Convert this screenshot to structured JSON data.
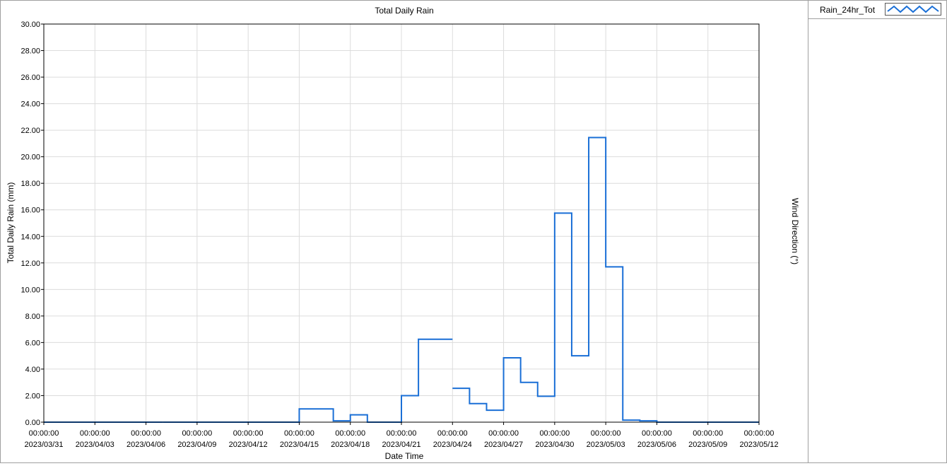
{
  "chart_data": {
    "type": "line",
    "title": "Total Daily Rain",
    "xlabel": "Date Time",
    "ylabel": "Total Daily Rain (mm)",
    "y2label": "Wind Direction (°)",
    "ylim": [
      0,
      30
    ],
    "yticks": [
      "0.00",
      "2.00",
      "4.00",
      "6.00",
      "8.00",
      "10.00",
      "12.00",
      "14.00",
      "16.00",
      "18.00",
      "20.00",
      "22.00",
      "24.00",
      "26.00",
      "28.00",
      "30.00"
    ],
    "xlim": [
      "2023-03-31",
      "2023-05-12"
    ],
    "xticks": [
      {
        "time": "00:00:00",
        "date": "2023/03/31"
      },
      {
        "time": "00:00:00",
        "date": "2023/04/03"
      },
      {
        "time": "00:00:00",
        "date": "2023/04/06"
      },
      {
        "time": "00:00:00",
        "date": "2023/04/09"
      },
      {
        "time": "00:00:00",
        "date": "2023/04/12"
      },
      {
        "time": "00:00:00",
        "date": "2023/04/15"
      },
      {
        "time": "00:00:00",
        "date": "2023/04/18"
      },
      {
        "time": "00:00:00",
        "date": "2023/04/21"
      },
      {
        "time": "00:00:00",
        "date": "2023/04/24"
      },
      {
        "time": "00:00:00",
        "date": "2023/04/27"
      },
      {
        "time": "00:00:00",
        "date": "2023/04/30"
      },
      {
        "time": "00:00:00",
        "date": "2023/05/03"
      },
      {
        "time": "00:00:00",
        "date": "2023/05/06"
      },
      {
        "time": "00:00:00",
        "date": "2023/05/09"
      },
      {
        "time": "00:00:00",
        "date": "2023/05/12"
      }
    ],
    "grid": true,
    "legend_position": "top-right",
    "series": [
      {
        "name": "Rain_24hr_Tot",
        "color": "#1a6fd6",
        "step": true,
        "segments": [
          [
            {
              "x": "2023-03-31",
              "y": 0
            },
            {
              "x": "2023-04-01",
              "y": 0
            },
            {
              "x": "2023-04-02",
              "y": 0
            },
            {
              "x": "2023-04-03",
              "y": 0
            },
            {
              "x": "2023-04-04",
              "y": 0
            },
            {
              "x": "2023-04-05",
              "y": 0
            },
            {
              "x": "2023-04-06",
              "y": 0
            }
          ],
          [
            {
              "x": "2023-04-07",
              "y": 0
            },
            {
              "x": "2023-04-08",
              "y": 0
            },
            {
              "x": "2023-04-09",
              "y": 0
            },
            {
              "x": "2023-04-10",
              "y": 0
            },
            {
              "x": "2023-04-11",
              "y": 0
            },
            {
              "x": "2023-04-12",
              "y": 0
            },
            {
              "x": "2023-04-13",
              "y": 0
            },
            {
              "x": "2023-04-14",
              "y": 0
            },
            {
              "x": "2023-04-15",
              "y": 1.0
            },
            {
              "x": "2023-04-16",
              "y": 1.0
            },
            {
              "x": "2023-04-17",
              "y": 0.1
            },
            {
              "x": "2023-04-18",
              "y": 0.55
            },
            {
              "x": "2023-04-19",
              "y": 0
            },
            {
              "x": "2023-04-20",
              "y": 0
            },
            {
              "x": "2023-04-21",
              "y": 2.0
            },
            {
              "x": "2023-04-22",
              "y": 6.25
            },
            {
              "x": "2023-04-23",
              "y": 6.25
            }
          ],
          [
            {
              "x": "2023-04-24",
              "y": 2.55
            },
            {
              "x": "2023-04-25",
              "y": 1.4
            },
            {
              "x": "2023-04-26",
              "y": 0.9
            },
            {
              "x": "2023-04-27",
              "y": 4.85
            },
            {
              "x": "2023-04-28",
              "y": 3.0
            },
            {
              "x": "2023-04-29",
              "y": 1.95
            },
            {
              "x": "2023-04-30",
              "y": 15.75
            },
            {
              "x": "2023-05-01",
              "y": 5.0
            },
            {
              "x": "2023-05-02",
              "y": 21.45
            },
            {
              "x": "2023-05-03",
              "y": 11.7
            },
            {
              "x": "2023-05-04",
              "y": 0.15
            },
            {
              "x": "2023-05-05",
              "y": 0.1
            },
            {
              "x": "2023-05-06",
              "y": 0
            },
            {
              "x": "2023-05-07",
              "y": 0
            },
            {
              "x": "2023-05-08",
              "y": 0
            },
            {
              "x": "2023-05-09",
              "y": 0
            },
            {
              "x": "2023-05-10",
              "y": 0
            },
            {
              "x": "2023-05-11",
              "y": 0
            }
          ]
        ]
      }
    ]
  },
  "legend": {
    "label": "Rain_24hr_Tot",
    "swatch_icon": "wave-line-icon"
  }
}
